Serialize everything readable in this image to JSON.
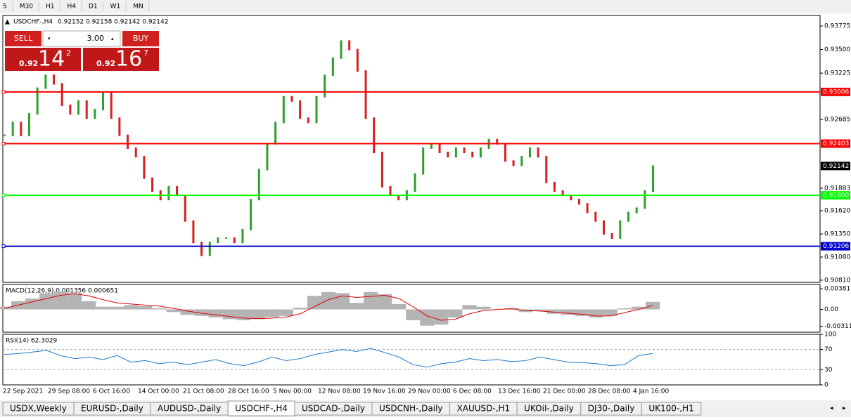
{
  "toolbar": [
    "5",
    "M30",
    "H1",
    "H4",
    "D1",
    "W1",
    "MN"
  ],
  "header": {
    "symbol": "USDCHF-,H4",
    "ohlc": "0.92152 0.92158 0.92142 0.92142"
  },
  "trade_panel": {
    "sell": "SELL",
    "buy": "BUY",
    "volume": "3.00",
    "bid": {
      "big": "0.92",
      "pips": "14",
      "frac": "2"
    },
    "ask": {
      "big": "0.92",
      "pips": "16",
      "frac": "7"
    }
  },
  "chart_data": [
    {
      "type": "candles",
      "name": "price",
      "ylim": [
        0.90785,
        0.93898
      ],
      "yticks": [
        0.93775,
        {
          "value": 0.935,
          "label": "0.93500"
        },
        0.93225,
        0.92685,
        0.91883,
        {
          "value": 0.9162,
          "label": "0.91620"
        },
        {
          "value": 0.9135,
          "label": "0.91350"
        },
        {
          "value": 0.9108,
          "label": "0.91080"
        },
        {
          "value": 0.9081,
          "label": "0.90810"
        }
      ],
      "levels": [
        {
          "value": 0.93006,
          "color": "#ff0000"
        },
        {
          "value": 0.92403,
          "color": "#ff0000"
        },
        {
          "value": 0.918,
          "label": "0.91800",
          "color": "#00ff00"
        },
        {
          "value": 0.91206,
          "color": "#0000cc"
        }
      ],
      "current": 0.92142,
      "values": [
        0.925,
        0.9265,
        0.925,
        0.9275,
        0.9305,
        0.932,
        0.931,
        0.9285,
        0.9275,
        0.929,
        0.927,
        0.928,
        0.93,
        0.927,
        0.925,
        0.9235,
        0.9225,
        0.92,
        0.9185,
        0.9175,
        0.919,
        0.918,
        0.915,
        0.9125,
        0.911,
        0.9125,
        0.913,
        0.913,
        0.9125,
        0.914,
        0.9175,
        0.921,
        0.924,
        0.9265,
        0.9295,
        0.929,
        0.927,
        0.9265,
        0.9295,
        0.932,
        0.934,
        0.936,
        0.935,
        0.9325,
        0.927,
        0.923,
        0.919,
        0.918,
        0.9175,
        0.9185,
        0.9205,
        0.9235,
        0.924,
        0.923,
        0.9225,
        0.9235,
        0.923,
        0.9225,
        0.9235,
        0.9245,
        0.924,
        0.922,
        0.9215,
        0.9225,
        0.9235,
        0.9225,
        0.9195,
        0.9185,
        0.918,
        0.9175,
        0.917,
        0.916,
        0.915,
        0.9135,
        0.913,
        0.915,
        0.916,
        0.9165,
        0.9185,
        0.9214
      ],
      "x_labels": [
        "22 Sep 2021",
        "29 Sep 08:00",
        "6 Oct 16:00",
        "14 Oct 00:00",
        "21 Oct 08:00",
        "28 Oct 16:00",
        "5 Nov 00:00",
        "12 Nov 08:00",
        "19 Nov 16:00",
        "29 Nov 00:00",
        "6 Dec 08:00",
        "13 Dec 16:00",
        "21 Dec 00:00",
        "28 Dec 08:00",
        "4 Jan 16:00"
      ]
    },
    {
      "type": "macd",
      "title": "MACD(12,26,9) 0.001356 0.000651",
      "ylim": [
        -0.0042,
        0.0046
      ],
      "yticks": [
        0.003811,
        {
          "value": 0,
          "label": "0.00"
        },
        -0.003115
      ],
      "series": [
        {
          "name": "histogram",
          "color": "#b4b4b4",
          "values": [
            0.0005,
            0.0015,
            0.002,
            0.003,
            0.0033,
            0.003,
            0.0015,
            0.0005,
            0.0005,
            0.0008,
            0.0006,
            0.0002,
            -0.0005,
            -0.001,
            -0.0012,
            -0.0015,
            -0.0018,
            -0.002,
            -0.0018,
            -0.0014,
            -0.0012,
            0.0003,
            0.0025,
            0.0032,
            0.003,
            0.0012,
            0.0032,
            0.0028,
            0.001,
            -0.002,
            -0.003,
            -0.0028,
            -0.0015,
            0.0008,
            0.0005,
            0,
            0.0003,
            -0.0005,
            -0.0003,
            -0.0008,
            -0.001,
            -0.0012,
            -0.0015,
            -0.0012,
            0.0002,
            0.0005,
            0.0014
          ]
        },
        {
          "name": "signal",
          "color": "#e00000",
          "values": [
            0.0002,
            0.0008,
            0.0014,
            0.002,
            0.0026,
            0.0029,
            0.0025,
            0.0018,
            0.0012,
            0.001,
            0.0008,
            0.0006,
            0.0002,
            -0.0003,
            -0.0007,
            -0.001,
            -0.0013,
            -0.0016,
            -0.0017,
            -0.0016,
            -0.0014,
            -0.0008,
            0.0005,
            0.0018,
            0.0025,
            0.0022,
            0.0024,
            0.0026,
            0.002,
            0.0005,
            -0.0012,
            -0.002,
            -0.0018,
            -0.0008,
            -0.0002,
            0,
            0.0001,
            -0.0002,
            -0.0003,
            -0.0005,
            -0.0007,
            -0.0009,
            -0.0012,
            -0.0012,
            -0.0006,
            0,
            0.0007
          ]
        }
      ]
    },
    {
      "type": "rsi",
      "title": "RSI(14) 62.3029",
      "ylim": [
        0,
        100
      ],
      "yticks": [
        100,
        70,
        30,
        0
      ],
      "levels": [
        70,
        30
      ],
      "series": [
        {
          "name": "rsi",
          "color": "#1e78c8",
          "values": [
            60,
            62,
            65,
            68,
            58,
            52,
            55,
            50,
            58,
            45,
            48,
            42,
            45,
            40,
            45,
            50,
            42,
            38,
            45,
            55,
            48,
            52,
            60,
            65,
            70,
            66,
            72,
            64,
            55,
            40,
            35,
            42,
            45,
            52,
            48,
            50,
            46,
            48,
            55,
            50,
            45,
            44,
            42,
            38,
            40,
            58,
            62
          ]
        }
      ]
    }
  ],
  "tabs": [
    "USDX,Weekly",
    "EURUSD-,Daily",
    "AUDUSD-,Daily",
    "USDCHF-,H4",
    "USDCAD-,Daily",
    "USDCNH-,Daily",
    "XAUUSD-,H1",
    "UKOil-,Daily",
    "DJ30-,Daily",
    "UK100-,H1"
  ],
  "active_tab": 3
}
